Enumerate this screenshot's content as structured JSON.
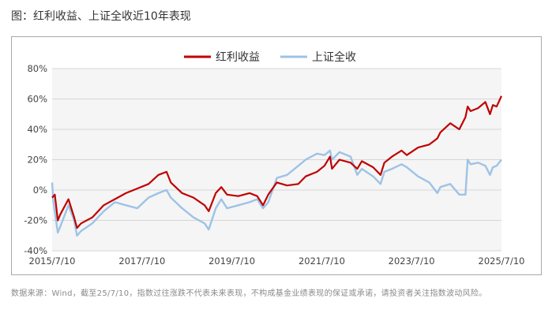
{
  "title": "图：红利收益、上证全收近10年表现",
  "source_note": "数据来源：Wind，截至25/7/10，指数过往涨跌不代表未来表现，不构成基金业绩表现的保证或承诺，请投资者关注指数波动风险。",
  "colors": {
    "red_series": "#c00000",
    "blue_series": "#9dc3e6",
    "plot_bg": "#f5f5f5"
  },
  "chart_data": {
    "type": "line",
    "xlabel": "",
    "ylabel": "",
    "ylim": [
      -40,
      80
    ],
    "y_ticks": [
      -40,
      -20,
      0,
      20,
      40,
      60,
      80
    ],
    "y_tick_labels": [
      "-40%",
      "-20%",
      "0%",
      "20%",
      "40%",
      "60%",
      "80%"
    ],
    "x_tick_labels": [
      "2015/7/10",
      "2017/7/10",
      "2019/7/10",
      "2021/7/10",
      "2023/7/10",
      "2025/7/10"
    ],
    "x_tick_dates": [
      "2015-07-10",
      "2017-07-10",
      "2019-07-10",
      "2021-07-10",
      "2023-07-10",
      "2025-07-10"
    ],
    "grid": "horizontal",
    "legend": "top-center",
    "series": [
      {
        "name": "红利收益",
        "color": "#c00000",
        "x": [
          "2015-07-10",
          "2015-08-01",
          "2015-08-25",
          "2015-09-15",
          "2015-11-20",
          "2016-01-05",
          "2016-01-28",
          "2016-03-01",
          "2016-06-01",
          "2016-09-01",
          "2016-12-01",
          "2017-03-01",
          "2017-06-01",
          "2017-09-01",
          "2017-11-20",
          "2018-01-25",
          "2018-03-01",
          "2018-06-01",
          "2018-09-01",
          "2018-12-01",
          "2019-01-03",
          "2019-03-01",
          "2019-04-15",
          "2019-06-01",
          "2019-09-01",
          "2019-12-01",
          "2020-02-01",
          "2020-03-20",
          "2020-05-01",
          "2020-07-10",
          "2020-10-01",
          "2021-01-01",
          "2021-03-01",
          "2021-06-01",
          "2021-08-01",
          "2021-09-15",
          "2021-10-01",
          "2021-12-01",
          "2022-03-01",
          "2022-04-25",
          "2022-06-01",
          "2022-09-01",
          "2022-10-31",
          "2022-12-01",
          "2023-02-01",
          "2023-04-20",
          "2023-06-01",
          "2023-09-01",
          "2023-12-01",
          "2024-02-05",
          "2024-03-01",
          "2024-05-20",
          "2024-08-01",
          "2024-09-20",
          "2024-10-08",
          "2024-11-01",
          "2025-01-01",
          "2025-03-01",
          "2025-04-08",
          "2025-05-01",
          "2025-06-01",
          "2025-07-10"
        ],
        "values": [
          -5,
          -3,
          -20,
          -16,
          -6,
          -18,
          -25,
          -22,
          -18,
          -10,
          -6,
          -2,
          1,
          4,
          10,
          12,
          5,
          -2,
          -5,
          -10,
          -14,
          -2,
          2,
          -3,
          -4,
          -2,
          -4,
          -10,
          -3,
          5,
          3,
          4,
          9,
          12,
          16,
          22,
          14,
          20,
          18,
          14,
          19,
          15,
          10,
          18,
          22,
          26,
          23,
          28,
          30,
          34,
          38,
          44,
          40,
          48,
          55,
          52,
          54,
          58,
          50,
          56,
          55,
          62
        ]
      },
      {
        "name": "上证全收",
        "color": "#9dc3e6",
        "x": [
          "2015-07-10",
          "2015-07-20",
          "2015-08-25",
          "2015-09-15",
          "2015-11-20",
          "2016-01-05",
          "2016-01-28",
          "2016-03-01",
          "2016-06-01",
          "2016-09-01",
          "2016-12-01",
          "2017-03-01",
          "2017-06-01",
          "2017-09-01",
          "2017-11-20",
          "2018-01-25",
          "2018-03-01",
          "2018-06-01",
          "2018-09-01",
          "2018-12-01",
          "2019-01-03",
          "2019-03-01",
          "2019-04-15",
          "2019-06-01",
          "2019-09-01",
          "2019-12-01",
          "2020-02-01",
          "2020-03-20",
          "2020-05-01",
          "2020-07-10",
          "2020-10-01",
          "2021-01-01",
          "2021-03-01",
          "2021-06-01",
          "2021-08-01",
          "2021-09-15",
          "2021-10-01",
          "2021-12-01",
          "2022-03-01",
          "2022-04-25",
          "2022-06-01",
          "2022-09-01",
          "2022-10-31",
          "2022-12-01",
          "2023-02-01",
          "2023-04-20",
          "2023-06-01",
          "2023-09-01",
          "2023-12-01",
          "2024-02-05",
          "2024-03-01",
          "2024-05-20",
          "2024-08-01",
          "2024-09-20",
          "2024-10-08",
          "2024-11-01",
          "2025-01-01",
          "2025-03-01",
          "2025-04-08",
          "2025-05-01",
          "2025-06-01",
          "2025-07-10"
        ],
        "values": [
          5,
          -8,
          -28,
          -24,
          -10,
          -20,
          -30,
          -27,
          -22,
          -14,
          -8,
          -10,
          -12,
          -5,
          -2,
          0,
          -5,
          -12,
          -18,
          -22,
          -26,
          -12,
          -6,
          -12,
          -10,
          -8,
          -6,
          -12,
          -8,
          8,
          10,
          16,
          20,
          24,
          23,
          26,
          20,
          25,
          22,
          10,
          14,
          9,
          4,
          12,
          14,
          17,
          15,
          9,
          5,
          -2,
          2,
          4,
          -3,
          -3,
          20,
          17,
          18,
          16,
          10,
          15,
          16,
          20
        ]
      }
    ]
  }
}
